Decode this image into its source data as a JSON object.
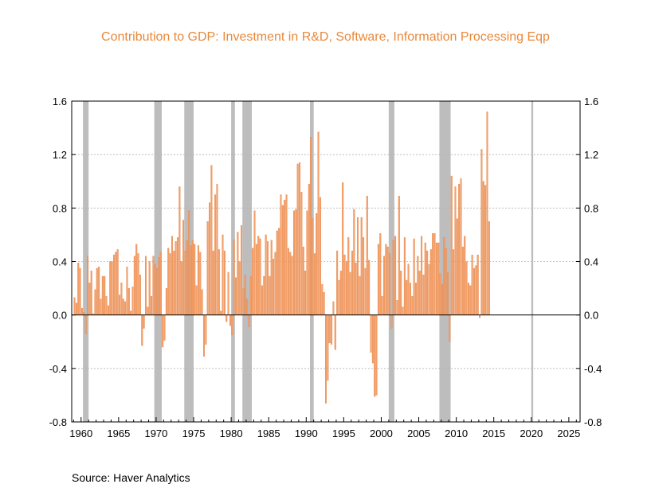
{
  "title": "Contribution to GDP: Investment in R&D, Software, Information Processing Eqp",
  "source": "Source:  Haver Analytics",
  "colors": {
    "bar": "#f4a06a",
    "bar_edge": "#e07a38",
    "recession": "#bdbdbd",
    "title": "#e8893b",
    "grid": "#b5b5b5"
  },
  "chart_data": {
    "type": "bar",
    "frequency": "quarterly",
    "start": 1959.0,
    "end": 2025.75,
    "xlim": [
      1958.75,
      2026.5
    ],
    "ylim": [
      -0.8,
      1.6
    ],
    "yticks": [
      -0.8,
      -0.4,
      0.0,
      0.4,
      0.8,
      1.2,
      1.6
    ],
    "ytick_labels": [
      "-0.8",
      "-0.4",
      "0.0",
      "0.4",
      "0.8",
      "1.2",
      "1.6"
    ],
    "xticks": [
      1960,
      1965,
      1970,
      1975,
      1980,
      1985,
      1990,
      1995,
      2000,
      2005,
      2010,
      2015,
      2020,
      2025
    ],
    "xtick_labels": [
      "1960",
      "1965",
      "1970",
      "1975",
      "1980",
      "1985",
      "1990",
      "1995",
      "2000",
      "2005",
      "2010",
      "2015",
      "2020",
      "2025"
    ],
    "grid": "horizontal dashed",
    "recessions": [
      [
        1960.25,
        1961.0
      ],
      [
        1969.75,
        1970.75
      ],
      [
        1973.75,
        1975.0
      ],
      [
        1980.0,
        1980.5
      ],
      [
        1981.5,
        1982.75
      ],
      [
        1990.5,
        1991.0
      ],
      [
        2001.0,
        2001.75
      ],
      [
        2007.75,
        2009.25
      ],
      [
        2020.0,
        2020.25
      ]
    ],
    "values": [
      0.13,
      0.09,
      0.39,
      0.35,
      0.05,
      0.02,
      -0.14,
      0.44,
      0.24,
      0.33,
      0.01,
      0.19,
      0.35,
      0.36,
      0.12,
      0.29,
      0.29,
      0.14,
      0.07,
      0.4,
      0.4,
      0.45,
      0.47,
      0.49,
      0.15,
      0.24,
      0.12,
      0.1,
      0.36,
      0.2,
      0.03,
      0.21,
      0.44,
      0.53,
      0.46,
      0.3,
      -0.23,
      -0.1,
      0.44,
      0.06,
      0.4,
      0.14,
      0.44,
      0.38,
      0.35,
      0.43,
      0.47,
      -0.24,
      -0.19,
      0.2,
      0.5,
      0.46,
      0.59,
      0.48,
      0.55,
      0.58,
      0.96,
      0.4,
      0.71,
      0.48,
      0.56,
      0.78,
      0.52,
      0.56,
      0.53,
      0.22,
      0.52,
      0.47,
      0.19,
      -0.31,
      -0.22,
      0.7,
      0.84,
      1.12,
      0.48,
      0.9,
      0.98,
      0.49,
      0.03,
      0.6,
      0.48,
      -0.05,
      0.32,
      -0.08,
      -0.15,
      0.56,
      0.28,
      0.62,
      0.4,
      0.67,
      0.2,
      0.3,
      0.12,
      -0.09,
      0.29,
      0.5,
      0.78,
      0.53,
      0.59,
      0.57,
      0.22,
      0.29,
      0.6,
      0.55,
      0.29,
      0.56,
      0.42,
      0.47,
      0.63,
      0.65,
      0.9,
      0.82,
      0.86,
      0.9,
      0.5,
      0.47,
      0.44,
      0.78,
      0.79,
      1.13,
      1.14,
      0.92,
      0.51,
      0.33,
      0.78,
      0.98,
      1.33,
      0.72,
      0.46,
      0.76,
      1.37,
      0.88,
      0.23,
      0.17,
      -0.66,
      -0.49,
      -0.21,
      -0.22,
      0.1,
      -0.26,
      0.48,
      0.26,
      0.33,
      0.99,
      0.45,
      0.4,
      0.58,
      0.32,
      0.48,
      0.79,
      0.39,
      0.73,
      0.29,
      0.73,
      0.58,
      0.35,
      0.89,
      0.41,
      -0.28,
      -0.36,
      -0.61,
      -0.6,
      0.53,
      0.61,
      0.14,
      0.44,
      0.53,
      0.51,
      0.46,
      -0.1,
      0.56,
      0.59,
      0.11,
      0.89,
      0.33,
      0.06,
      0.58,
      0.26,
      0.38,
      0.24,
      0.14,
      0.57,
      0.24,
      0.44,
      0.33,
      0.59,
      0.3,
      0.54,
      0.48,
      0.38,
      0.49,
      0.61,
      0.61,
      0.54,
      0.54,
      0.31,
      0.23,
      0.58,
      0.5,
      0.32,
      -0.2,
      1.04,
      0.49,
      0.96,
      0.72,
      0.98,
      1.02,
      0.51,
      0.59,
      0.4,
      0.24,
      0.22,
      0.45,
      0.35,
      0.37,
      0.45,
      -0.02,
      1.24,
      1.0,
      0.97,
      1.52,
      0.7
    ]
  }
}
